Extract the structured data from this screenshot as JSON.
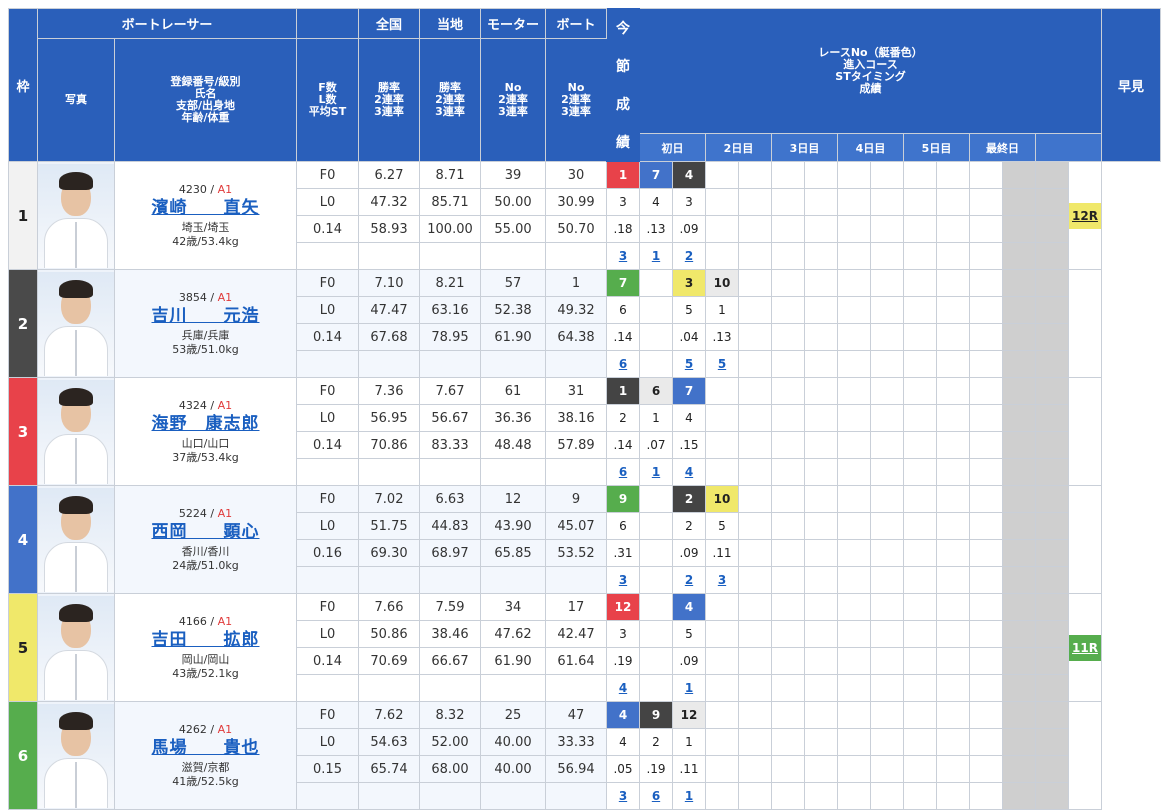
{
  "header": {
    "waku": "枠",
    "boat_racer": "ボートレーサー",
    "photo": "写真",
    "racer_info": [
      "登録番号/級別",
      "氏名",
      "支部/出身地",
      "年齢/体重"
    ],
    "f_l_st": [
      "F数",
      "L数",
      "平均ST"
    ],
    "zenkoku": "全国",
    "touchi": "当地",
    "motor": "モーター",
    "boat": "ボート",
    "rates": [
      "勝率",
      "2連率",
      "3連率"
    ],
    "no_rates": [
      "No",
      "2連率",
      "3連率"
    ],
    "race_info": [
      "レースNo（艇番色）",
      "進入コース",
      "STタイミング",
      "成績"
    ],
    "days": [
      "初日",
      "2日目",
      "3日目",
      "4日目",
      "5日目",
      "最終日"
    ],
    "hayami": "早見",
    "konsetsu": [
      "今",
      "節",
      "成",
      "績"
    ]
  },
  "racers": [
    {
      "waku": "1",
      "reg": "4230",
      "cls": "A1",
      "name": "濱崎　　直矢",
      "branch": "埼玉/埼玉",
      "age_weight": "42歳/53.4kg",
      "f": "F0",
      "l": "L0",
      "st": "0.14",
      "zen": [
        "6.27",
        "47.32",
        "58.93"
      ],
      "tou": [
        "8.71",
        "85.71",
        "100.00"
      ],
      "motor": [
        "39",
        "50.00",
        "55.00"
      ],
      "boat": [
        "30",
        "30.99",
        "50.70"
      ],
      "hayami": "12R",
      "hayami_color": "y",
      "races": [
        {
          "no": "1",
          "course": "3",
          "st": ".18",
          "res": "3",
          "col": "b1"
        },
        {
          "no": "7",
          "course": "4",
          "st": ".13",
          "res": "1",
          "col": "b4"
        },
        {
          "no": "4",
          "course": "3",
          "st": ".09",
          "res": "2",
          "col": "b2"
        }
      ]
    },
    {
      "waku": "2",
      "reg": "3854",
      "cls": "A1",
      "name": "吉川　　元浩",
      "branch": "兵庫/兵庫",
      "age_weight": "53歳/51.0kg",
      "f": "F0",
      "l": "L0",
      "st": "0.14",
      "zen": [
        "7.10",
        "47.47",
        "67.68"
      ],
      "tou": [
        "8.21",
        "63.16",
        "78.95"
      ],
      "motor": [
        "57",
        "52.38",
        "61.90"
      ],
      "boat": [
        "1",
        "49.32",
        "64.38"
      ],
      "hayami": "",
      "hayami_color": "",
      "races": [
        {
          "no": "7",
          "course": "6",
          "st": ".14",
          "res": "6",
          "col": "b6"
        },
        {
          "no": "",
          "course": "",
          "st": "",
          "res": "",
          "col": "bwhite"
        },
        {
          "no": "3",
          "course": "5",
          "st": ".04",
          "res": "5",
          "col": "b5"
        },
        {
          "no": "10",
          "course": "1",
          "st": ".13",
          "res": "5",
          "col": "bgray"
        }
      ]
    },
    {
      "waku": "3",
      "reg": "4324",
      "cls": "A1",
      "name": "海野　康志郎",
      "branch": "山口/山口",
      "age_weight": "37歳/53.4kg",
      "f": "F0",
      "l": "L0",
      "st": "0.14",
      "zen": [
        "7.36",
        "56.95",
        "70.86"
      ],
      "tou": [
        "7.67",
        "56.67",
        "83.33"
      ],
      "motor": [
        "61",
        "36.36",
        "48.48"
      ],
      "boat": [
        "31",
        "38.16",
        "57.89"
      ],
      "hayami": "",
      "hayami_color": "",
      "races": [
        {
          "no": "1",
          "course": "2",
          "st": ".14",
          "res": "6",
          "col": "b2"
        },
        {
          "no": "6",
          "course": "1",
          "st": ".07",
          "res": "1",
          "col": "bgray"
        },
        {
          "no": "7",
          "course": "4",
          "st": ".15",
          "res": "4",
          "col": "b4"
        }
      ]
    },
    {
      "waku": "4",
      "reg": "5224",
      "cls": "A1",
      "name": "西岡　　顕心",
      "branch": "香川/香川",
      "age_weight": "24歳/51.0kg",
      "f": "F0",
      "l": "L0",
      "st": "0.16",
      "zen": [
        "7.02",
        "51.75",
        "69.30"
      ],
      "tou": [
        "6.63",
        "44.83",
        "68.97"
      ],
      "motor": [
        "12",
        "43.90",
        "65.85"
      ],
      "boat": [
        "9",
        "45.07",
        "53.52"
      ],
      "hayami": "",
      "hayami_color": "",
      "races": [
        {
          "no": "9",
          "course": "6",
          "st": ".31",
          "res": "3",
          "col": "b6"
        },
        {
          "no": "",
          "course": "",
          "st": "",
          "res": "",
          "col": "bwhite"
        },
        {
          "no": "2",
          "course": "2",
          "st": ".09",
          "res": "2",
          "col": "b2"
        },
        {
          "no": "10",
          "course": "5",
          "st": ".11",
          "res": "3",
          "col": "b5"
        }
      ]
    },
    {
      "waku": "5",
      "reg": "4166",
      "cls": "A1",
      "name": "吉田　　拡郎",
      "branch": "岡山/岡山",
      "age_weight": "43歳/52.1kg",
      "f": "F0",
      "l": "L0",
      "st": "0.14",
      "zen": [
        "7.66",
        "50.86",
        "70.69"
      ],
      "tou": [
        "7.59",
        "38.46",
        "66.67"
      ],
      "motor": [
        "34",
        "47.62",
        "61.90"
      ],
      "boat": [
        "17",
        "42.47",
        "61.64"
      ],
      "hayami": "11R",
      "hayami_color": "g",
      "races": [
        {
          "no": "12",
          "course": "3",
          "st": ".19",
          "res": "4",
          "col": "b3"
        },
        {
          "no": "",
          "course": "",
          "st": "",
          "res": "",
          "col": "bwhite"
        },
        {
          "no": "4",
          "course": "5",
          "st": ".09",
          "res": "1",
          "col": "b4"
        }
      ]
    },
    {
      "waku": "6",
      "reg": "4262",
      "cls": "A1",
      "name": "馬場　　貴也",
      "branch": "滋賀/京都",
      "age_weight": "41歳/52.5kg",
      "f": "F0",
      "l": "L0",
      "st": "0.15",
      "zen": [
        "7.62",
        "54.63",
        "65.74"
      ],
      "tou": [
        "8.32",
        "52.00",
        "68.00"
      ],
      "motor": [
        "25",
        "40.00",
        "40.00"
      ],
      "boat": [
        "47",
        "33.33",
        "56.94"
      ],
      "hayami": "",
      "hayami_color": "",
      "races": [
        {
          "no": "4",
          "course": "4",
          "st": ".05",
          "res": "3",
          "col": "b4"
        },
        {
          "no": "9",
          "course": "2",
          "st": ".19",
          "res": "6",
          "col": "b2"
        },
        {
          "no": "12",
          "course": "1",
          "st": ".11",
          "res": "1",
          "col": "bgray"
        }
      ]
    }
  ]
}
